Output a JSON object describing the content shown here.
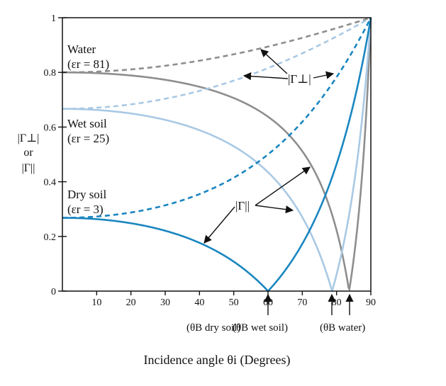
{
  "chart_data": {
    "type": "line",
    "title": "",
    "xlabel": "Incidence angle θi (Degrees)",
    "ylabel_lines": [
      "|Γ⊥|",
      "or",
      "|Γ||"
    ],
    "xlim": [
      0,
      90
    ],
    "ylim": [
      0,
      1
    ],
    "x_ticks": [
      10,
      20,
      30,
      40,
      50,
      60,
      70,
      80,
      90
    ],
    "y_ticks": [
      0,
      0.2,
      0.4,
      0.6,
      0.8,
      1
    ],
    "y_tick_labels": [
      "0",
      "0.2",
      "0.4",
      "0.6",
      "0.8",
      "1"
    ],
    "grid": false,
    "colors": {
      "water": "#8e8e8e",
      "wet_soil": "#a9c9e4",
      "dry_soil": "#1a86c0"
    },
    "series": [
      {
        "medium": "water",
        "eps_r": 81,
        "polarization": "perpendicular",
        "style": "dashed"
      },
      {
        "medium": "water",
        "eps_r": 81,
        "polarization": "parallel",
        "style": "solid"
      },
      {
        "medium": "wet_soil",
        "eps_r": 25,
        "polarization": "perpendicular",
        "style": "dashed"
      },
      {
        "medium": "wet_soil",
        "eps_r": 25,
        "polarization": "parallel",
        "style": "solid"
      },
      {
        "medium": "dry_soil",
        "eps_r": 3,
        "polarization": "perpendicular",
        "style": "dashed"
      },
      {
        "medium": "dry_soil",
        "eps_r": 3,
        "polarization": "parallel",
        "style": "solid"
      }
    ],
    "curve_labels": {
      "water": {
        "name": "Water",
        "eps": "(εr = 81)"
      },
      "wet_soil": {
        "name": "Wet soil",
        "eps": "(εr = 25)"
      },
      "dry_soil": {
        "name": "Dry soil",
        "eps": "(εr = 3)"
      }
    },
    "annotations": {
      "perp": "|Γ⊥|",
      "par": "|Γ||",
      "brewster": [
        {
          "text": "(θB dry soil)",
          "x": 60
        },
        {
          "text": "(θB wet soil)",
          "x": 78.7
        },
        {
          "text": "(θB water)",
          "x": 83.7
        }
      ]
    }
  }
}
